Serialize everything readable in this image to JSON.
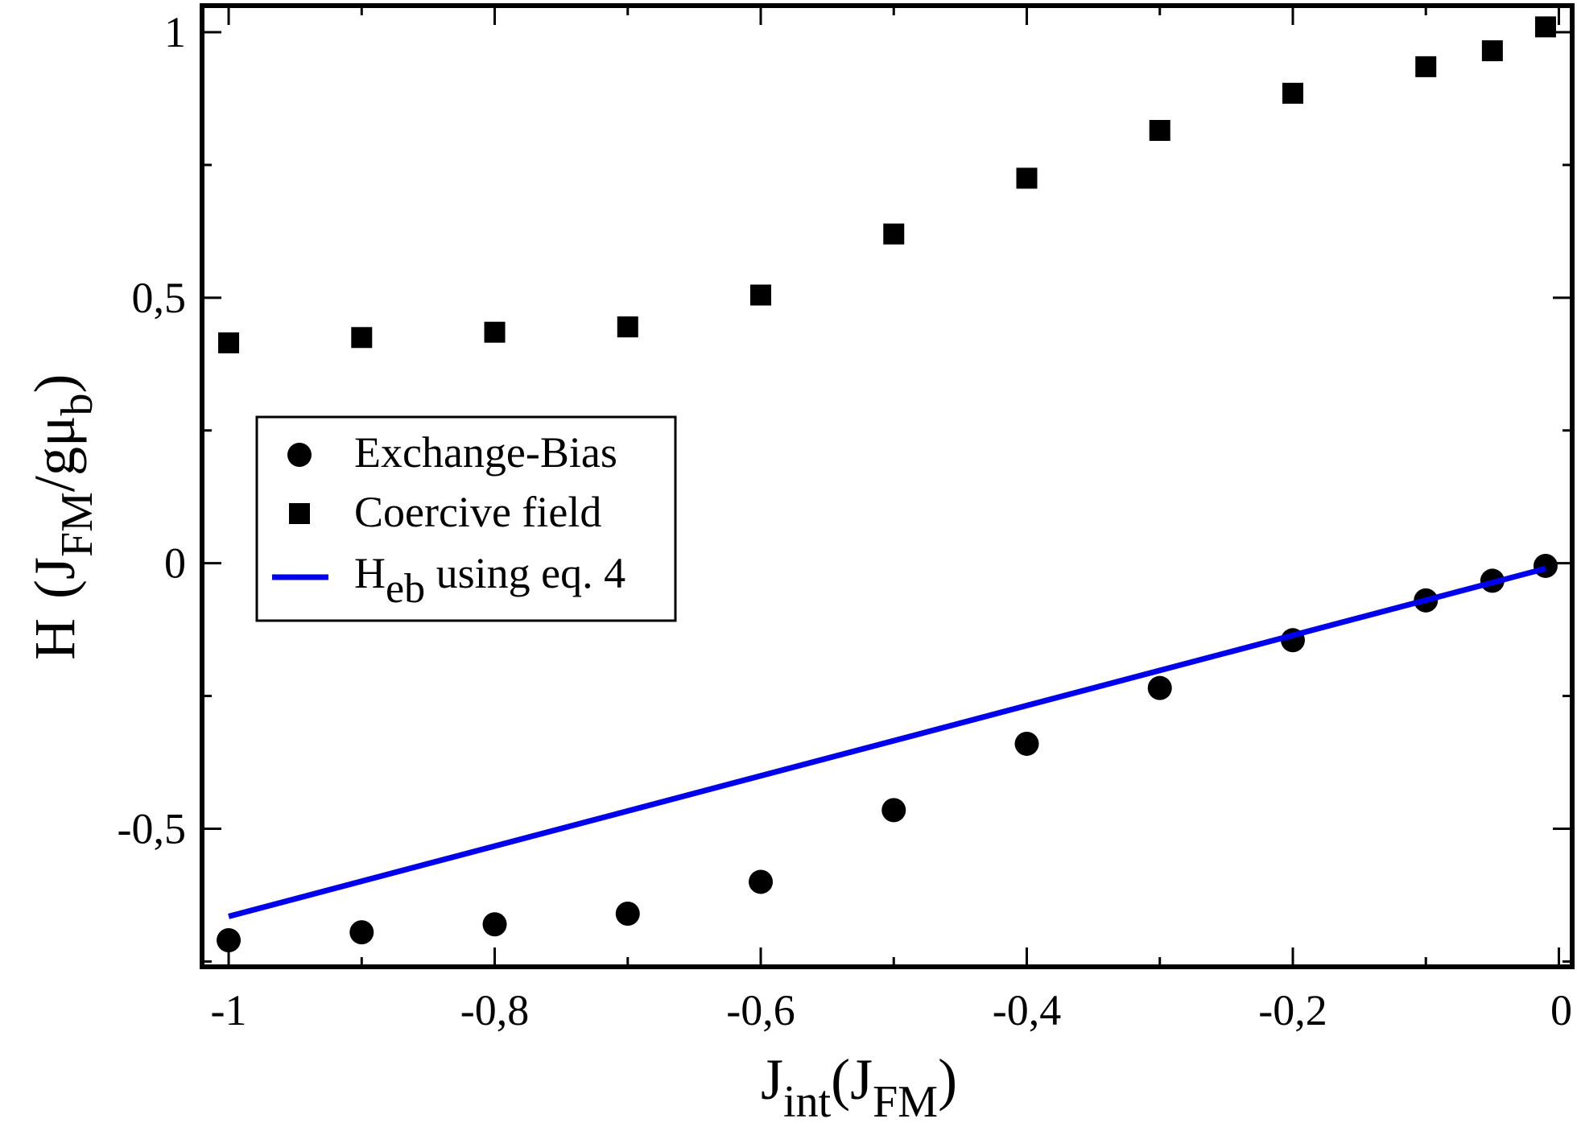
{
  "chart_data": {
    "type": "scatter",
    "title": "",
    "xlabel": {
      "main": "J",
      "sub1": "int",
      "mid": "(J",
      "sub2": "FM",
      "end": ")"
    },
    "ylabel": {
      "main": "H",
      "open": "(J",
      "sub1": "FM",
      "mid": "/gμ",
      "sub2": "b",
      "end": ")"
    },
    "xlim": [
      -1.02,
      0.01
    ],
    "ylim": [
      -0.76,
      1.05
    ],
    "xticks": [
      {
        "value": -1.0,
        "label": "-1"
      },
      {
        "value": -0.8,
        "label": "-0,8"
      },
      {
        "value": -0.6,
        "label": "-0,6"
      },
      {
        "value": -0.4,
        "label": "-0,4"
      },
      {
        "value": -0.2,
        "label": "-0,2"
      },
      {
        "value": 0.0,
        "label": "0"
      }
    ],
    "yticks": [
      {
        "value": -0.5,
        "label": "-0,5"
      },
      {
        "value": 0.0,
        "label": "0"
      },
      {
        "value": 0.5,
        "label": "0,5"
      },
      {
        "value": 1.0,
        "label": "1"
      }
    ],
    "series": [
      {
        "name": "Exchange-Bias",
        "marker": "circle",
        "color": "#000000",
        "x": [
          -1.0,
          -0.9,
          -0.8,
          -0.7,
          -0.6,
          -0.5,
          -0.4,
          -0.3,
          -0.2,
          -0.1,
          -0.05,
          -0.01
        ],
        "y": [
          -0.71,
          -0.695,
          -0.68,
          -0.66,
          -0.6,
          -0.465,
          -0.34,
          -0.235,
          -0.145,
          -0.07,
          -0.033,
          -0.005
        ]
      },
      {
        "name": "Coercive field",
        "marker": "square",
        "color": "#000000",
        "x": [
          -1.0,
          -0.9,
          -0.8,
          -0.7,
          -0.6,
          -0.5,
          -0.4,
          -0.3,
          -0.2,
          -0.1,
          -0.05,
          -0.01
        ],
        "y": [
          0.415,
          0.425,
          0.435,
          0.445,
          0.505,
          0.62,
          0.725,
          0.815,
          0.885,
          0.935,
          0.965,
          1.01
        ]
      },
      {
        "name": "H",
        "name_sub": "eb",
        "name_rest": " using eq. 4",
        "marker": "line",
        "color": "#0000ee",
        "x": [
          -1.0,
          -0.01
        ],
        "y": [
          -0.665,
          -0.01
        ]
      }
    ],
    "legend_position": "center-left"
  }
}
